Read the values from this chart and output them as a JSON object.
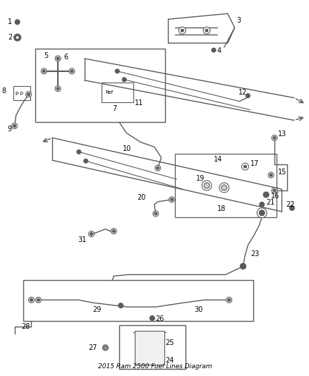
{
  "title": "2015 Ram 2500 Fuel Lines Diagram",
  "bg": "#ffffff",
  "lc": "#5a5a5a",
  "tc": "#000000",
  "fig_w": 4.38,
  "fig_h": 5.33,
  "dpi": 100
}
